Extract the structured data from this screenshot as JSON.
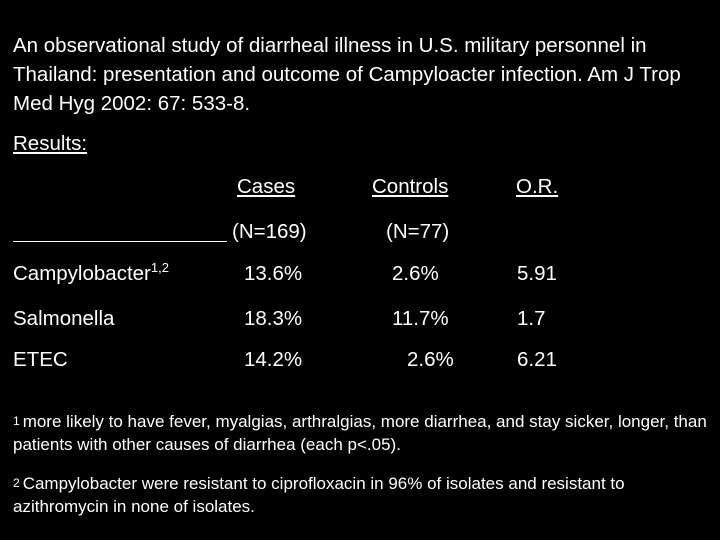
{
  "citation": "An observational study of diarrheal illness in U.S. military personnel in Thailand:  presentation and outcome of Campyloacter infection.  Am J Trop Med Hyg 2002: 67: 533-8.",
  "results_label": "Results:",
  "table": {
    "headers": [
      "Cases",
      "Controls",
      "O.R."
    ],
    "n_values": [
      "(N=169)",
      "(N=77)"
    ],
    "rows": [
      {
        "label": "Campylobacter",
        "sup": "1,2",
        "cases": "13.6%",
        "controls": "2.6%",
        "or": "5.91"
      },
      {
        "label": "Salmonella",
        "sup": "",
        "cases": "18.3%",
        "controls": "11.7%",
        "or": "1.7"
      },
      {
        "label": "ETEC",
        "sup": "",
        "cases": "14.2%",
        "controls": "2.6%",
        "or": "6.21"
      }
    ]
  },
  "footnotes": [
    {
      "mark": "1",
      "text": "more likely to have fever, myalgias, arthralgias, more diarrhea, and stay sicker, longer, than patients with other causes of diarrhea (each p<.05)."
    },
    {
      "mark": "2",
      "text": "Campylobacter were resistant to ciprofloxacin in 96% of isolates and resistant to azithromycin in none of isolates."
    }
  ]
}
